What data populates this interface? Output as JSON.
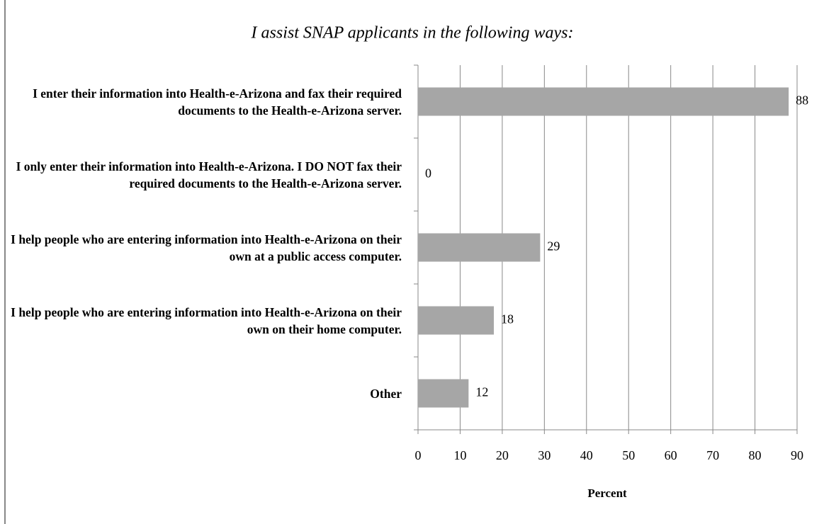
{
  "chart_data": {
    "type": "bar",
    "orientation": "horizontal",
    "title": "I assist SNAP applicants in the following ways:",
    "categories": [
      "I enter their information into Health-e-Arizona and fax their required documents to the Health-e-Arizona server.",
      "I only enter their information into Health-e-Arizona. I DO NOT fax their required documents to the Health-e-Arizona server.",
      "I help people who are entering information into Health-e-Arizona on their own at a public access computer.",
      "I help people who are entering information into Health-e-Arizona on their own on their home computer.",
      "Other"
    ],
    "values": [
      88,
      0,
      29,
      18,
      12
    ],
    "color": "#a6a6a6",
    "xlabel": "Percent",
    "xlim": [
      0,
      90
    ],
    "xticks": [
      0,
      10,
      20,
      30,
      40,
      50,
      60,
      70,
      80,
      90
    ],
    "grid": true
  }
}
